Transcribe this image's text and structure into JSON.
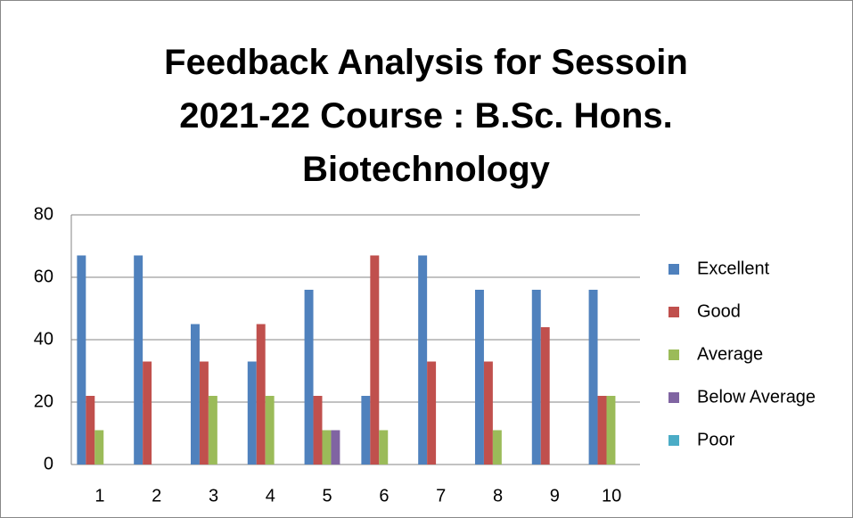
{
  "chart_data": {
    "type": "bar",
    "title": "Feedback Analysis for Sessoin 2021-22 Course : B.Sc. Hons. Biotechnology",
    "categories": [
      "1",
      "2",
      "3",
      "4",
      "5",
      "6",
      "7",
      "8",
      "9",
      "10"
    ],
    "series": [
      {
        "name": "Excellent",
        "color": "#4f81bd",
        "values": [
          67,
          67,
          45,
          33,
          56,
          22,
          67,
          56,
          56,
          56
        ]
      },
      {
        "name": "Good",
        "color": "#c0504d",
        "values": [
          22,
          33,
          33,
          45,
          22,
          67,
          33,
          33,
          44,
          22
        ]
      },
      {
        "name": "Average",
        "color": "#9bbb59",
        "values": [
          11,
          0,
          22,
          22,
          11,
          11,
          0,
          11,
          0,
          22
        ]
      },
      {
        "name": "Below Average",
        "color": "#8064a2",
        "values": [
          0,
          0,
          0,
          0,
          11,
          0,
          0,
          0,
          0,
          0
        ]
      },
      {
        "name": "Poor",
        "color": "#4bacc6",
        "values": [
          0,
          0,
          0,
          0,
          0,
          0,
          0,
          0,
          0,
          0
        ]
      }
    ],
    "ylim": [
      0,
      80
    ],
    "yticks": [
      0,
      20,
      40,
      60,
      80
    ],
    "grid": true,
    "legend": "right"
  }
}
